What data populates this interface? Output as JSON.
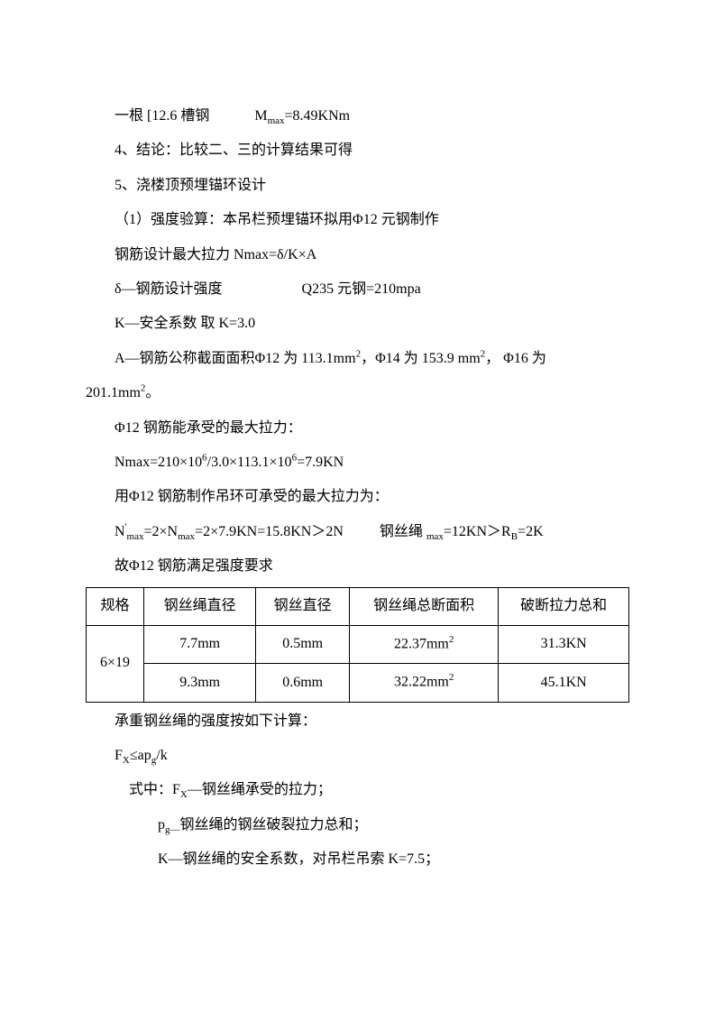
{
  "p1_a": "一根  [12.6 槽钢",
  "p1_b": "M",
  "p1_c": "max",
  "p1_d": "=8.49KNm",
  "p2": "4、结论：比较二、三的计算结果可得",
  "p3": "5、浇楼顶预埋锚环设计",
  "p4": "（1）强度验算：本吊栏预埋锚环拟用Φ12 元钢制作",
  "p5": "钢筋设计最大拉力 Nmax=δ/K×A",
  "p6_a": "δ—钢筋设计强度",
  "p6_b": "Q235 元钢=210mpa",
  "p7": "K—安全系数  取 K=3.0",
  "p8_a": "A—钢筋公称截面面积Φ12 为 113.1mm",
  "p8_b": "，Φ14 为 153.9 mm",
  "p8_c": "，  Φ16 为",
  "p8_d": "201.1mm",
  "p8_e": "。",
  "p9": "Φ12 钢筋能承受的最大拉力：",
  "p10_a": "Nmax=210×10",
  "p10_b": "/3.0×113.1×10",
  "p10_c": "=7.9KN",
  "p11": "用Φ12 钢筋制作吊环可承受的最大拉力为：",
  "p12_a": "N",
  "p12_b": "max",
  "p12_c": "=2×N",
  "p12_d": "max",
  "p12_e": "=2×7.9KN=15.8KN＞2N",
  "p12_f": "钢丝绳 ",
  "p12_g": "max",
  "p12_h": "=12KN＞R",
  "p12_i": "B",
  "p12_j": "=2K",
  "p13": "故Φ12 钢筋满足强度要求",
  "table": {
    "headers": [
      "规格",
      "钢丝绳直径",
      "钢丝直径",
      "钢丝绳总断面积",
      "破断拉力总和"
    ],
    "spec": "6×19",
    "rows": [
      [
        "7.7mm",
        "0.5mm",
        "22.37mm",
        "31.3KN"
      ],
      [
        "9.3mm",
        "0.6mm",
        "32.22mm",
        "45.1KN"
      ]
    ]
  },
  "p14": "承重钢丝绳的强度按如下计算：",
  "p15_a": "F",
  "p15_b": "X",
  "p15_c": "≤ap",
  "p15_d": "g",
  "p15_e": "/k",
  "p16_a": "式中：F",
  "p16_b": "X",
  "p16_c": "—钢丝绳承受的拉力；",
  "p17_a": "p",
  "p17_b": "g—",
  "p17_c": "钢丝绳的钢丝破裂拉力总和；",
  "p18": "K—钢丝绳的安全系数，对吊栏吊索 K=7.5；"
}
